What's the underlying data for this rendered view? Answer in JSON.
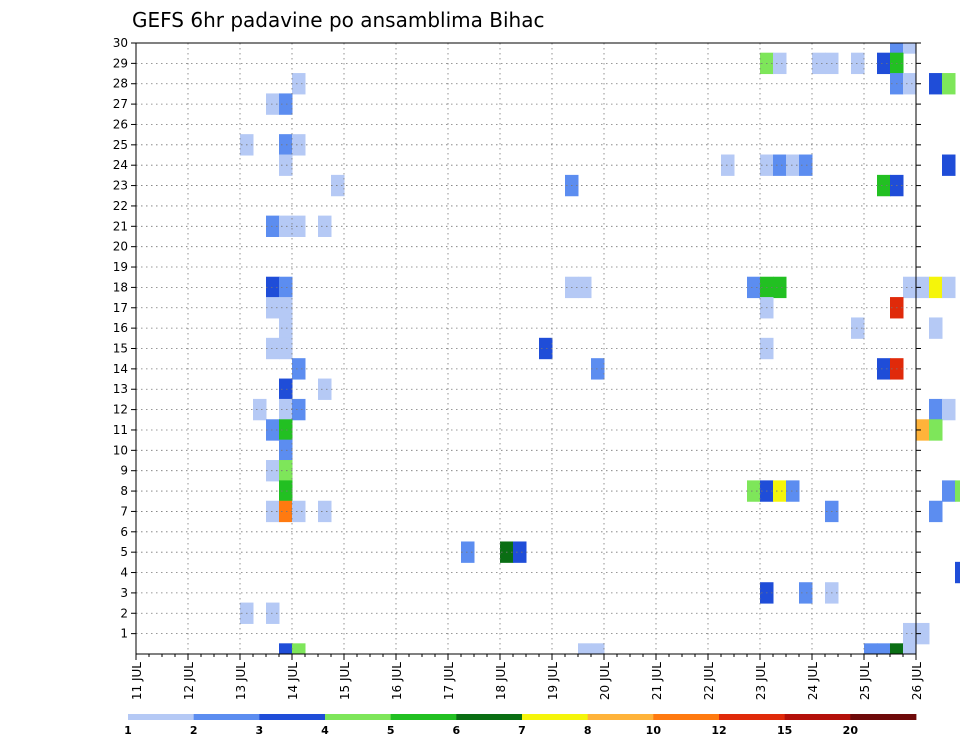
{
  "chart_data": {
    "type": "heatmap",
    "title": "GEFS 6hr padavine po ansamblima Bihac",
    "xlabel": "",
    "ylabel": "",
    "x_start": "11 JUL 00Z",
    "x_ticks": [
      "11 JUL",
      "12 JUL",
      "13 JUL",
      "14 JUL",
      "15 JUL",
      "16 JUL",
      "17 JUL",
      "18 JUL",
      "19 JUL",
      "20 JUL",
      "21 JUL",
      "22 JUL",
      "23 JUL",
      "24 JUL",
      "25 JUL",
      "26 JUL"
    ],
    "y_ticks": [
      "1",
      "2",
      "3",
      "4",
      "5",
      "6",
      "7",
      "8",
      "9",
      "10",
      "11",
      "12",
      "13",
      "14",
      "15",
      "16",
      "17",
      "18",
      "19",
      "20",
      "21",
      "22",
      "23",
      "24",
      "25",
      "26",
      "27",
      "28",
      "29",
      "30"
    ],
    "colorbar": {
      "labels": [
        "1",
        "2",
        "3",
        "4",
        "5",
        "6",
        "7",
        "8",
        "10",
        "12",
        "15",
        "20"
      ],
      "colors": [
        "#b5c9f5",
        "#5c8df0",
        "#1f4dd8",
        "#7ee65a",
        "#22c022",
        "#0a6e14",
        "#f5f50a",
        "#ffb33a",
        "#ff7a10",
        "#e02a0a",
        "#b4100a",
        "#6e0a0a"
      ]
    },
    "cells_note": "each cell = [forecast step index (6-hourly from 11 JUL 00Z), ensemble member (0 = control row below 1), colorbar class index]",
    "cells": [
      [
        58,
        30,
        1
      ],
      [
        59,
        30,
        0
      ],
      [
        65,
        30,
        2
      ],
      [
        66,
        30,
        0
      ],
      [
        67,
        30,
        11
      ],
      [
        68,
        30,
        8
      ],
      [
        48,
        29,
        3
      ],
      [
        49,
        29,
        0
      ],
      [
        52,
        29,
        0
      ],
      [
        53,
        29,
        0
      ],
      [
        55,
        29,
        0
      ],
      [
        57,
        29,
        2
      ],
      [
        58,
        29,
        4
      ],
      [
        12,
        28,
        0
      ],
      [
        58,
        28,
        1
      ],
      [
        59,
        28,
        0
      ],
      [
        61,
        28,
        2
      ],
      [
        62,
        28,
        3
      ],
      [
        10,
        27,
        0
      ],
      [
        11,
        27,
        1
      ],
      [
        68,
        27,
        0
      ],
      [
        8,
        25,
        0
      ],
      [
        11,
        25,
        1
      ],
      [
        12,
        25,
        0
      ],
      [
        11,
        24,
        0
      ],
      [
        45,
        24,
        0
      ],
      [
        48,
        24,
        0
      ],
      [
        49,
        24,
        1
      ],
      [
        50,
        24,
        0
      ],
      [
        51,
        24,
        1
      ],
      [
        62,
        24,
        2
      ],
      [
        15,
        23,
        0
      ],
      [
        33,
        23,
        1
      ],
      [
        57,
        23,
        4
      ],
      [
        58,
        23,
        2
      ],
      [
        10,
        21,
        1
      ],
      [
        11,
        21,
        0
      ],
      [
        12,
        21,
        0
      ],
      [
        14,
        21,
        0
      ],
      [
        64,
        20,
        5
      ],
      [
        65,
        20,
        6
      ],
      [
        10,
        18,
        2
      ],
      [
        11,
        18,
        1
      ],
      [
        33,
        18,
        0
      ],
      [
        34,
        18,
        0
      ],
      [
        47,
        18,
        1
      ],
      [
        48,
        18,
        4
      ],
      [
        49,
        18,
        4
      ],
      [
        59,
        18,
        0
      ],
      [
        60,
        18,
        0
      ],
      [
        61,
        18,
        6
      ],
      [
        62,
        18,
        0
      ],
      [
        65,
        18,
        2
      ],
      [
        66,
        18,
        9
      ],
      [
        67,
        18,
        0
      ],
      [
        10,
        17,
        0
      ],
      [
        11,
        17,
        0
      ],
      [
        48,
        17,
        0
      ],
      [
        58,
        17,
        9
      ],
      [
        11,
        16,
        0
      ],
      [
        55,
        16,
        0
      ],
      [
        61,
        16,
        0
      ],
      [
        10,
        15,
        0
      ],
      [
        11,
        15,
        0
      ],
      [
        31,
        15,
        2
      ],
      [
        48,
        15,
        0
      ],
      [
        12,
        14,
        1
      ],
      [
        35,
        14,
        1
      ],
      [
        57,
        14,
        2
      ],
      [
        58,
        14,
        9
      ],
      [
        11,
        13,
        2
      ],
      [
        14,
        13,
        0
      ],
      [
        9,
        12,
        0
      ],
      [
        11,
        12,
        0
      ],
      [
        12,
        12,
        1
      ],
      [
        61,
        12,
        1
      ],
      [
        62,
        12,
        0
      ],
      [
        10,
        11,
        1
      ],
      [
        11,
        11,
        4
      ],
      [
        60,
        11,
        7
      ],
      [
        61,
        11,
        3
      ],
      [
        11,
        10,
        1
      ],
      [
        10,
        9,
        0
      ],
      [
        11,
        9,
        3
      ],
      [
        11,
        8,
        4
      ],
      [
        47,
        8,
        3
      ],
      [
        48,
        8,
        2
      ],
      [
        49,
        8,
        6
      ],
      [
        50,
        8,
        1
      ],
      [
        62,
        8,
        1
      ],
      [
        63,
        8,
        3
      ],
      [
        64,
        8,
        3
      ],
      [
        65,
        8,
        1
      ],
      [
        10,
        7,
        0
      ],
      [
        11,
        7,
        8
      ],
      [
        12,
        7,
        0
      ],
      [
        14,
        7,
        0
      ],
      [
        53,
        7,
        1
      ],
      [
        61,
        7,
        1
      ],
      [
        25,
        5,
        1
      ],
      [
        28,
        5,
        5
      ],
      [
        29,
        5,
        2
      ],
      [
        63,
        4,
        2
      ],
      [
        64,
        4,
        9
      ],
      [
        65,
        4,
        2
      ],
      [
        66,
        4,
        0
      ],
      [
        67,
        4,
        0
      ],
      [
        48,
        3,
        2
      ],
      [
        51,
        3,
        1
      ],
      [
        53,
        3,
        0
      ],
      [
        65,
        3,
        0
      ],
      [
        67,
        3,
        0
      ],
      [
        68,
        3,
        1
      ],
      [
        8,
        2,
        0
      ],
      [
        10,
        2,
        0
      ],
      [
        67,
        2,
        0
      ],
      [
        68,
        2,
        1
      ],
      [
        59,
        1,
        0
      ],
      [
        60,
        1,
        0
      ],
      [
        68,
        1,
        1
      ],
      [
        11,
        0,
        2
      ],
      [
        12,
        0,
        3
      ],
      [
        34,
        0,
        0
      ],
      [
        35,
        0,
        0
      ],
      [
        56,
        0,
        1
      ],
      [
        57,
        0,
        1
      ],
      [
        58,
        0,
        5
      ],
      [
        59,
        0,
        0
      ]
    ]
  }
}
